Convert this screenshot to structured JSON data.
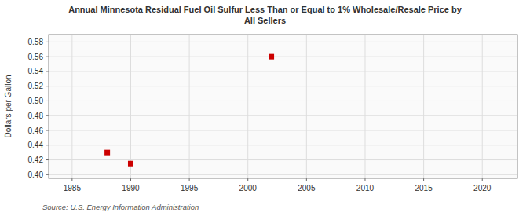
{
  "chart_data": {
    "type": "scatter",
    "title": "Annual Minnesota Residual Fuel Oil Sulfur Less Than or Equal to 1% Wholesale/Resale Price by\nAll Sellers",
    "y_label": "Dollars per Gallon",
    "source": "Source: U.S. Energy Information Administration",
    "x": [
      1988,
      1990,
      2002
    ],
    "values": [
      0.43,
      0.415,
      0.56
    ],
    "xlim": [
      1983,
      2023
    ],
    "ylim": [
      0.395,
      0.59
    ],
    "xticks": [
      1985,
      1990,
      1995,
      2000,
      2005,
      2010,
      2015,
      2020
    ],
    "yticks": [
      {
        "value": 0.4,
        "label": "0.40"
      },
      0.42,
      0.44,
      0.46,
      0.48,
      {
        "value": 0.5,
        "label": "0.50"
      },
      0.52,
      0.54,
      0.56,
      0.58
    ],
    "color": "#cc0000",
    "marker": "square",
    "grid": true
  }
}
